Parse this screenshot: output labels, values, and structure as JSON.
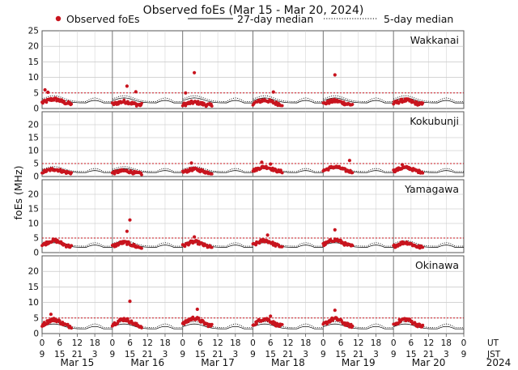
{
  "chart_data": {
    "type": "scatter",
    "title": "Observed foEs (Mar 15 - Mar 20, 2024)",
    "ylabel": "foEs (MHz)",
    "legend": [
      {
        "key": "observed",
        "label": "Observed foEs",
        "color": "#c8141e",
        "style": "dot"
      },
      {
        "key": "median27",
        "label": "27-day median",
        "color": "#000000",
        "style": "solid"
      },
      {
        "key": "median5",
        "label": "5-day median",
        "color": "#000000",
        "style": "dotted"
      }
    ],
    "ylim": [
      0,
      25
    ],
    "yticks": [
      "0",
      "5",
      "10",
      "15",
      "20",
      "25"
    ],
    "xlim_hours_ut": [
      0,
      144
    ],
    "x_ticks_ut": [
      "0",
      "6",
      "12",
      "18",
      "0",
      "6",
      "12",
      "18",
      "0",
      "6",
      "12",
      "18",
      "0",
      "6",
      "12",
      "18",
      "0",
      "6",
      "12",
      "18",
      "0",
      "6",
      "12",
      "18",
      "0"
    ],
    "x_ticks_jst": [
      "9",
      "15",
      "21",
      "3",
      "9",
      "15",
      "21",
      "3",
      "9",
      "15",
      "21",
      "3",
      "9",
      "15",
      "21",
      "3",
      "9",
      "15",
      "21",
      "3",
      "9",
      "15",
      "21",
      "3",
      "9"
    ],
    "tz_labels": {
      "ut": "UT",
      "jst": "JST"
    },
    "day_labels": [
      "Mar 15",
      "Mar 16",
      "Mar 17",
      "Mar 18",
      "Mar 19",
      "Mar 20"
    ],
    "year_label": "2024",
    "colors": {
      "observed": "#c8141e",
      "threshold": "#c8141e",
      "median": "#000000",
      "grid": "#888888"
    },
    "stations": [
      {
        "name": "Wakkanai",
        "threshold": 5,
        "median27_level": 1.8,
        "base": [
          2.6,
          1.9,
          1.7,
          2.3,
          2.1,
          2.3
        ],
        "spikes": [
          {
            "day": 0,
            "hour": 1,
            "value": 6.0
          },
          {
            "day": 0,
            "hour": 2,
            "value": 5.2
          },
          {
            "day": 1,
            "hour": 5,
            "value": 7.2
          },
          {
            "day": 1,
            "hour": 8,
            "value": 5.4
          },
          {
            "day": 2,
            "hour": 4,
            "value": 11.5
          },
          {
            "day": 2,
            "hour": 1,
            "value": 5.0
          },
          {
            "day": 4,
            "hour": 4,
            "value": 10.8
          },
          {
            "day": 3,
            "hour": 7,
            "value": 5.3
          }
        ]
      },
      {
        "name": "Kokubunji",
        "threshold": 5,
        "median27_level": 1.5,
        "base": [
          2.4,
          1.9,
          2.4,
          3.2,
          3.2,
          3.0
        ],
        "spikes": [
          {
            "day": 2,
            "hour": 3,
            "value": 5.2
          },
          {
            "day": 3,
            "hour": 3,
            "value": 5.5
          },
          {
            "day": 3,
            "hour": 6,
            "value": 4.8
          },
          {
            "day": 4,
            "hour": 9,
            "value": 6.2
          },
          {
            "day": 5,
            "hour": 3,
            "value": 4.6
          }
        ]
      },
      {
        "name": "Yamagawa",
        "threshold": 5,
        "median27_level": 1.8,
        "base": [
          3.6,
          3.0,
          3.2,
          3.6,
          3.8,
          3.0
        ],
        "spikes": [
          {
            "day": 1,
            "hour": 6,
            "value": 11.2
          },
          {
            "day": 1,
            "hour": 5,
            "value": 7.3
          },
          {
            "day": 4,
            "hour": 4,
            "value": 7.8
          },
          {
            "day": 3,
            "hour": 5,
            "value": 6.0
          },
          {
            "day": 2,
            "hour": 4,
            "value": 5.4
          }
        ]
      },
      {
        "name": "Okinawa",
        "threshold": 5,
        "median27_level": 1.5,
        "base": [
          3.9,
          4.0,
          4.3,
          4.1,
          4.1,
          4.0
        ],
        "spikes": [
          {
            "day": 1,
            "hour": 6,
            "value": 10.4
          },
          {
            "day": 2,
            "hour": 5,
            "value": 7.8
          },
          {
            "day": 4,
            "hour": 4,
            "value": 7.5
          },
          {
            "day": 0,
            "hour": 3,
            "value": 6.2
          },
          {
            "day": 3,
            "hour": 6,
            "value": 5.6
          }
        ]
      }
    ]
  }
}
